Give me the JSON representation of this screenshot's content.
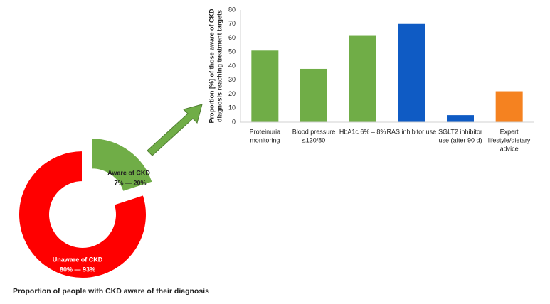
{
  "chart_data": [
    {
      "type": "donut",
      "categories": [
        "Aware of CKD",
        "Unaware of CKD"
      ],
      "range_labels": [
        "7% — 20%",
        "80% — 93%"
      ],
      "values": [
        20,
        80
      ],
      "colors": [
        "#70ad47",
        "#ff0000"
      ],
      "title": "Proportion of people with CKD aware of their diagnosis"
    },
    {
      "type": "bar",
      "y_label": [
        "Proportion [%] of those aware of CKD",
        "diagnosis reaching treatment targets"
      ],
      "categories": [
        [
          "Proteinuria",
          "monitoring"
        ],
        [
          "Blood pressure",
          "≤130/80"
        ],
        [
          "HbA1c 6% – 8%"
        ],
        [
          "RAS inhibitor use"
        ],
        [
          "SGLT2 inhibitor",
          "use (after 90 d)"
        ],
        [
          "Expert",
          "lifestyle/dietary",
          "advice"
        ]
      ],
      "values": [
        51,
        38,
        62,
        70,
        5,
        22
      ],
      "colors": [
        "#70ad47",
        "#70ad47",
        "#70ad47",
        "#0f5bc4",
        "#0f5bc4",
        "#f58220"
      ],
      "ylim": [
        0,
        80
      ],
      "yticks": [
        0,
        10,
        20,
        30,
        40,
        50,
        60,
        70,
        80
      ],
      "grid": false
    }
  ]
}
